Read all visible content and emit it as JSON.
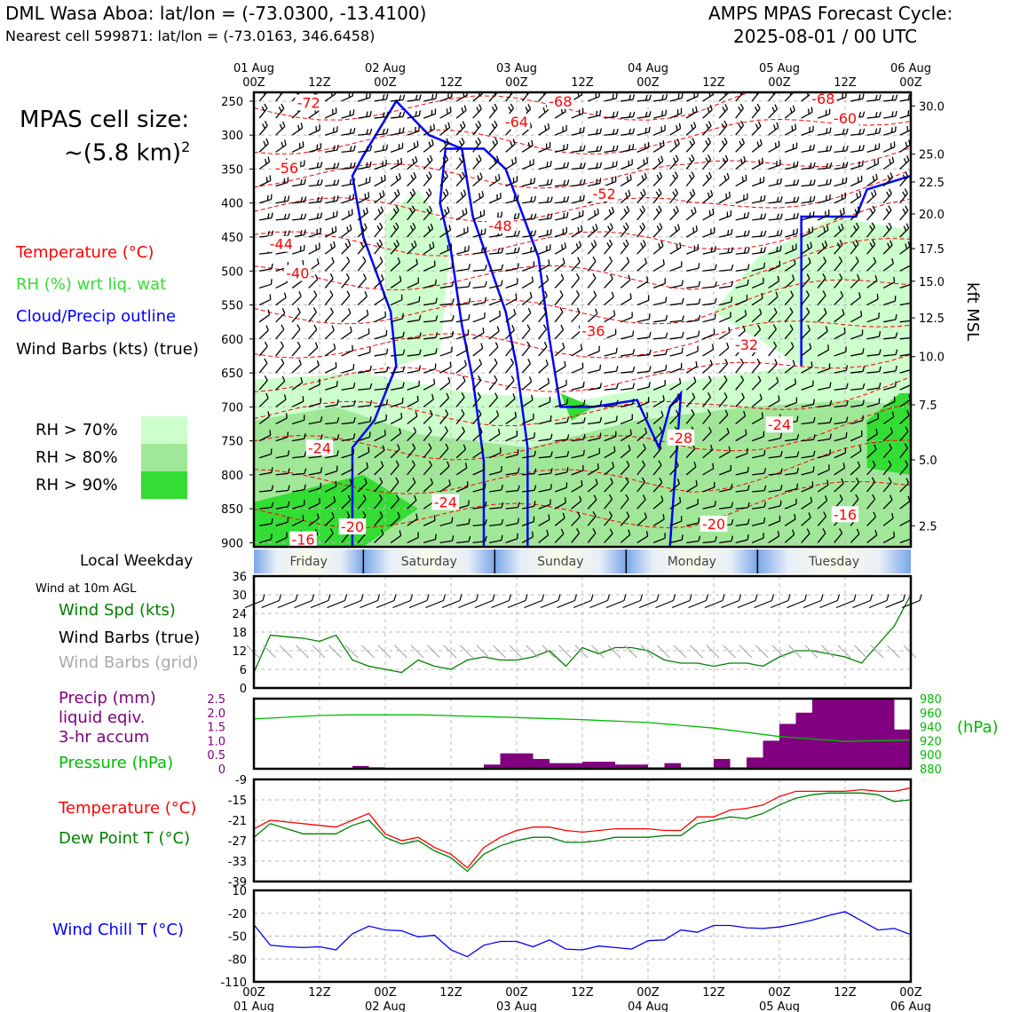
{
  "header": {
    "station_line": "DML Wasa Aboa: lat/lon = (-73.0300, -13.4100)",
    "cell_line": "Nearest cell 599871: lat/lon = (-73.0163, 346.6458)",
    "model_line1": "AMPS MPAS Forecast Cycle:",
    "model_line2": "2025-08-01 / 00 UTC"
  },
  "cell_size": {
    "line1": "MPAS cell size:",
    "line2": "~(5.8 km)",
    "sup": "2"
  },
  "legend_main": {
    "temperature": "Temperature (°C)",
    "rh": "RH (%) wrt liq. wat",
    "cloud": "Cloud/Precip outline",
    "wind": "Wind Barbs (kts) (true)",
    "colors": {
      "temperature": "#ff0000",
      "rh": "#33dd33",
      "cloud": "#0000ff",
      "wind": "#000000"
    }
  },
  "rh_legend": {
    "items": [
      {
        "label": "RH > 70%",
        "color": "#ccffcc"
      },
      {
        "label": "RH > 80%",
        "color": "#a0e898"
      },
      {
        "label": "RH > 90%",
        "color": "#33dd33"
      }
    ]
  },
  "time_axis": {
    "top_date_labels": [
      "01 Aug",
      "02 Aug",
      "03 Aug",
      "04 Aug",
      "05 Aug",
      "06 Aug"
    ],
    "hour_labels": [
      "00Z",
      "12Z",
      "00Z",
      "12Z",
      "00Z",
      "12Z",
      "00Z",
      "12Z",
      "00Z",
      "12Z",
      "00Z"
    ],
    "bottom_date_labels": [
      "01 Aug",
      "02 Aug",
      "03 Aug",
      "04 Aug",
      "05 Aug",
      "06 Aug"
    ]
  },
  "weekday": {
    "title": "Local Weekday",
    "days": [
      "Friday",
      "Saturday",
      "Sunday",
      "Monday",
      "Tuesday"
    ]
  },
  "sfc_wind_panel": {
    "subtitle": "Wind at 10m AGL",
    "labels": {
      "speed": "Wind Spd (kts)",
      "barbs_true": "Wind Barbs (true)",
      "barbs_grid": "Wind Barbs (grid)"
    },
    "colors": {
      "speed": "#008000",
      "barbs_true": "#000000",
      "barbs_grid": "#aaaaaa"
    }
  },
  "precip_panel": {
    "labels": {
      "precip1": "Precip (mm)",
      "precip2": "liquid eqiv.",
      "precip3": "3-hr accum",
      "pressure": "Pressure (hPa)",
      "hpa_unit": "(hPa)"
    },
    "colors": {
      "precip": "#800080",
      "pressure": "#00bb00"
    }
  },
  "temp_panel": {
    "labels": {
      "temperature": "Temperature (°C)",
      "dewpoint": "Dew Point T (°C)"
    },
    "colors": {
      "temperature": "#ff0000",
      "dewpoint": "#008000"
    }
  },
  "chill_panel": {
    "labels": {
      "chill": "Wind Chill T (°C)"
    },
    "colors": {
      "chill": "#0000ff"
    }
  },
  "chart_data": [
    {
      "type": "heatmap",
      "name": "time-height cross section",
      "x_range_hours": [
        0,
        120
      ],
      "y_pressure_hpa_ticks": [
        250,
        300,
        350,
        400,
        450,
        500,
        550,
        600,
        650,
        700,
        750,
        800,
        850,
        900
      ],
      "y_right_kft_ticks": [
        {
          "p": 257,
          "label": "30.0"
        },
        {
          "p": 328,
          "label": "25.0"
        },
        {
          "p": 369,
          "label": "22.5"
        },
        {
          "p": 416,
          "label": "20.0"
        },
        {
          "p": 467,
          "label": "17.5"
        },
        {
          "p": 515,
          "label": "15.0"
        },
        {
          "p": 569,
          "label": "12.5"
        },
        {
          "p": 626,
          "label": "10.0"
        },
        {
          "p": 697,
          "label": "7.5"
        },
        {
          "p": 778,
          "label": "5.0"
        },
        {
          "p": 875,
          "label": "2.5"
        }
      ],
      "y_right_label": "kft MSL",
      "temperature_labels": [
        {
          "t": 10,
          "p": 252,
          "label": "-72"
        },
        {
          "t": 56,
          "p": 250,
          "label": "-68"
        },
        {
          "t": 104,
          "p": 246,
          "label": "-68"
        },
        {
          "t": 108,
          "p": 275,
          "label": "-60"
        },
        {
          "t": 48,
          "p": 280,
          "label": "-64"
        },
        {
          "t": 6,
          "p": 348,
          "label": "-56"
        },
        {
          "t": 64,
          "p": 386,
          "label": "-52"
        },
        {
          "t": 45,
          "p": 433,
          "label": "-48"
        },
        {
          "t": 5,
          "p": 460,
          "label": "-44"
        },
        {
          "t": 8,
          "p": 503,
          "label": "-40"
        },
        {
          "t": 62,
          "p": 588,
          "label": "-36"
        },
        {
          "t": 90,
          "p": 608,
          "label": "-32"
        },
        {
          "t": 12,
          "p": 760,
          "label": "-24"
        },
        {
          "t": 35,
          "p": 840,
          "label": "-24"
        },
        {
          "t": 96,
          "p": 726,
          "label": "-24"
        },
        {
          "t": 78,
          "p": 745,
          "label": "-28"
        },
        {
          "t": 18,
          "p": 876,
          "label": "-20"
        },
        {
          "t": 84,
          "p": 872,
          "label": "-20"
        },
        {
          "t": 108,
          "p": 858,
          "label": "-16"
        },
        {
          "t": 9,
          "p": 895,
          "label": "-16"
        }
      ],
      "colors": {
        "temperature": "#ff0000",
        "rh": "#33dd33",
        "cloud": "#0000ff"
      }
    },
    {
      "type": "line",
      "name": "10m wind",
      "ylim": [
        0,
        36
      ],
      "yticks": [
        0,
        6,
        12,
        18,
        24,
        30,
        36
      ],
      "x_hours": [
        0,
        3,
        6,
        9,
        12,
        15,
        18,
        21,
        24,
        27,
        30,
        33,
        36,
        39,
        42,
        45,
        48,
        51,
        54,
        57,
        60,
        63,
        66,
        69,
        72,
        75,
        78,
        81,
        84,
        87,
        90,
        93,
        96,
        99,
        102,
        105,
        108,
        111,
        114,
        117,
        120
      ],
      "wind_speed_kts": [
        5,
        17,
        16.5,
        16,
        15,
        17,
        9,
        7,
        6,
        5,
        9,
        7,
        6,
        9,
        10,
        9,
        9,
        10,
        12,
        7,
        13,
        11,
        13,
        13,
        12,
        9,
        8,
        8,
        7,
        8,
        8,
        7,
        10,
        12,
        12,
        11,
        10,
        8,
        14,
        20,
        30
      ]
    },
    {
      "type": "bar",
      "name": "precip and pressure",
      "precip_ylim": [
        0,
        2.5
      ],
      "precip_yticks": [
        0,
        0.5,
        1.0,
        1.5,
        2.0,
        2.5
      ],
      "pressure_ylim": [
        880,
        980
      ],
      "pressure_yticks": [
        880,
        900,
        920,
        940,
        960,
        980
      ],
      "precip_mm_3h": [
        {
          "t": 18,
          "v": 0.1
        },
        {
          "t": 21,
          "v": 0.05
        },
        {
          "t": 42,
          "v": 0.15
        },
        {
          "t": 45,
          "v": 0.55
        },
        {
          "t": 48,
          "v": 0.55
        },
        {
          "t": 51,
          "v": 0.35
        },
        {
          "t": 54,
          "v": 0.2
        },
        {
          "t": 57,
          "v": 0.2
        },
        {
          "t": 60,
          "v": 0.25
        },
        {
          "t": 63,
          "v": 0.25
        },
        {
          "t": 66,
          "v": 0.15
        },
        {
          "t": 69,
          "v": 0.15
        },
        {
          "t": 72,
          "v": 0.05
        },
        {
          "t": 75,
          "v": 0.2
        },
        {
          "t": 78,
          "v": 0.05
        },
        {
          "t": 81,
          "v": 0.05
        },
        {
          "t": 84,
          "v": 0.35
        },
        {
          "t": 87,
          "v": 0.05
        },
        {
          "t": 90,
          "v": 0.4
        },
        {
          "t": 93,
          "v": 1.0
        },
        {
          "t": 96,
          "v": 1.6
        },
        {
          "t": 99,
          "v": 2.0
        },
        {
          "t": 102,
          "v": 2.5
        },
        {
          "t": 105,
          "v": 2.5
        },
        {
          "t": 108,
          "v": 2.5
        },
        {
          "t": 111,
          "v": 2.5
        },
        {
          "t": 114,
          "v": 2.5
        },
        {
          "t": 117,
          "v": 1.4
        }
      ],
      "pressure_hpa": [
        {
          "t": 0,
          "v": 951
        },
        {
          "t": 12,
          "v": 956
        },
        {
          "t": 18,
          "v": 957
        },
        {
          "t": 30,
          "v": 957
        },
        {
          "t": 48,
          "v": 953
        },
        {
          "t": 60,
          "v": 950
        },
        {
          "t": 72,
          "v": 946
        },
        {
          "t": 84,
          "v": 938
        },
        {
          "t": 96,
          "v": 926
        },
        {
          "t": 108,
          "v": 919
        },
        {
          "t": 120,
          "v": 921
        }
      ]
    },
    {
      "type": "line",
      "name": "temperature and dew point",
      "ylim": [
        -39,
        -9
      ],
      "yticks": [
        -39,
        -33,
        -27,
        -21,
        -15,
        -9
      ],
      "x_hours": [
        0,
        3,
        6,
        9,
        12,
        15,
        18,
        21,
        24,
        27,
        30,
        33,
        36,
        39,
        42,
        45,
        48,
        51,
        54,
        57,
        60,
        63,
        66,
        69,
        72,
        75,
        78,
        81,
        84,
        87,
        90,
        93,
        96,
        99,
        102,
        105,
        108,
        111,
        114,
        117,
        120
      ],
      "temperature_c": [
        -23.5,
        -21,
        -21.5,
        -22,
        -22.5,
        -23,
        -21,
        -19,
        -25,
        -27,
        -26,
        -29,
        -31,
        -35,
        -29,
        -26,
        -24,
        -23,
        -23,
        -24,
        -24.5,
        -24,
        -23.5,
        -23.5,
        -23.5,
        -24,
        -24,
        -20,
        -20,
        -18,
        -17.5,
        -16.5,
        -14,
        -12.5,
        -12.5,
        -12.5,
        -12.5,
        -12,
        -12.5,
        -12.5,
        -11.5
      ],
      "dewpoint_c": [
        -26,
        -22,
        -23.5,
        -25,
        -25,
        -25,
        -22.5,
        -21,
        -26,
        -28,
        -27,
        -30,
        -32,
        -36,
        -31,
        -28.5,
        -27,
        -26,
        -26,
        -27.5,
        -27.5,
        -27,
        -26,
        -26,
        -26,
        -25.5,
        -25.5,
        -22,
        -21,
        -20,
        -20.5,
        -19,
        -16.5,
        -14.5,
        -13.5,
        -13,
        -13,
        -13,
        -13.5,
        -15.5,
        -15
      ]
    },
    {
      "type": "line",
      "name": "wind chill",
      "ylim": [
        -110,
        10
      ],
      "yticks": [
        -110,
        -80,
        -50,
        -20,
        10
      ],
      "x_hours": [
        0,
        3,
        6,
        9,
        12,
        15,
        18,
        21,
        24,
        27,
        30,
        33,
        36,
        39,
        42,
        45,
        48,
        51,
        54,
        57,
        60,
        63,
        66,
        69,
        72,
        75,
        78,
        81,
        84,
        87,
        90,
        93,
        96,
        99,
        102,
        105,
        108,
        111,
        114,
        117,
        120
      ],
      "wind_chill_c": [
        -35,
        -62,
        -64,
        -65,
        -64,
        -68,
        -47,
        -37,
        -42,
        -43,
        -51,
        -49,
        -68,
        -77,
        -62,
        -57,
        -57,
        -64,
        -55,
        -67,
        -68,
        -63,
        -65,
        -67,
        -56,
        -55,
        -42,
        -45,
        -36,
        -36,
        -39,
        -40,
        -38,
        -34,
        -29,
        -23,
        -18,
        -30,
        -42,
        -40,
        -48
      ]
    }
  ]
}
